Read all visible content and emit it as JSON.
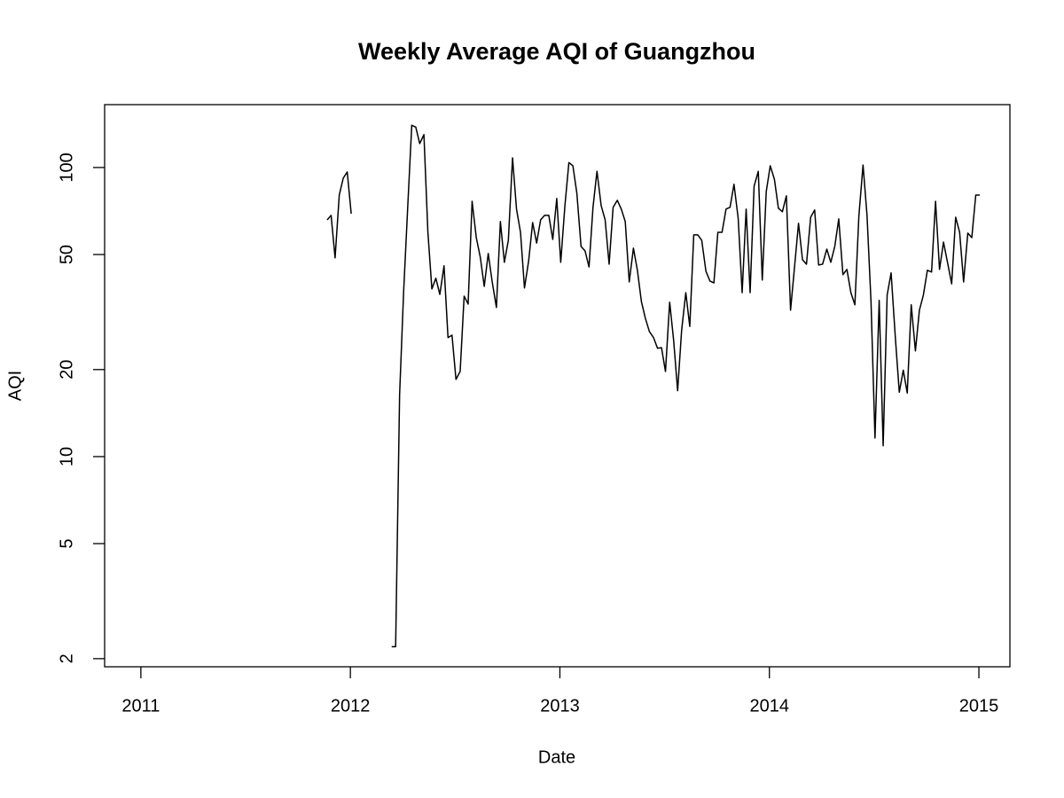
{
  "chart_data": {
    "type": "line",
    "title": "Weekly Average AQI of Guangzhou",
    "x_label": "Date",
    "y_label": "AQI",
    "log_scale_y": true,
    "grid": false,
    "xlim": [
      2010.827,
      2015.148
    ],
    "ylim": [
      1.875,
      165
    ],
    "xticks": [
      2011,
      2012,
      2013,
      2014,
      2015
    ],
    "yticks": [
      2,
      5,
      10,
      20,
      50,
      100
    ],
    "x": [
      2011.889,
      2011.908,
      2011.927,
      2011.947,
      2011.966,
      2011.985,
      2012.004,
      2012.024,
      2012.043,
      2012.062,
      2012.081,
      2012.101,
      2012.12,
      2012.139,
      2012.158,
      2012.177,
      2012.197,
      2012.216,
      2012.235,
      2012.254,
      2012.274,
      2012.293,
      2012.312,
      2012.331,
      2012.351,
      2012.37,
      2012.389,
      2012.408,
      2012.427,
      2012.447,
      2012.466,
      2012.485,
      2012.504,
      2012.524,
      2012.543,
      2012.562,
      2012.581,
      2012.601,
      2012.62,
      2012.639,
      2012.658,
      2012.677,
      2012.697,
      2012.716,
      2012.735,
      2012.754,
      2012.774,
      2012.793,
      2012.812,
      2012.831,
      2012.851,
      2012.87,
      2012.889,
      2012.908,
      2012.927,
      2012.947,
      2012.966,
      2012.985,
      2013.004,
      2013.024,
      2013.043,
      2013.062,
      2013.081,
      2013.101,
      2013.12,
      2013.139,
      2013.158,
      2013.177,
      2013.197,
      2013.216,
      2013.235,
      2013.254,
      2013.274,
      2013.293,
      2013.312,
      2013.331,
      2013.351,
      2013.37,
      2013.389,
      2013.408,
      2013.427,
      2013.447,
      2013.466,
      2013.485,
      2013.504,
      2013.524,
      2013.543,
      2013.562,
      2013.581,
      2013.601,
      2013.62,
      2013.639,
      2013.658,
      2013.677,
      2013.697,
      2013.716,
      2013.735,
      2013.754,
      2013.774,
      2013.793,
      2013.812,
      2013.831,
      2013.851,
      2013.87,
      2013.889,
      2013.908,
      2013.927,
      2013.947,
      2013.966,
      2013.985,
      2014.004,
      2014.024,
      2014.043,
      2014.062,
      2014.081,
      2014.101,
      2014.12,
      2014.139,
      2014.158,
      2014.177,
      2014.197,
      2014.216,
      2014.235,
      2014.254,
      2014.274,
      2014.293,
      2014.312,
      2014.331,
      2014.351,
      2014.37,
      2014.389,
      2014.408,
      2014.427,
      2014.447,
      2014.466,
      2014.485,
      2014.504,
      2014.524,
      2014.543,
      2014.562,
      2014.581,
      2014.601,
      2014.62,
      2014.639,
      2014.658,
      2014.677,
      2014.697,
      2014.716,
      2014.735,
      2014.754,
      2014.774,
      2014.793,
      2014.812,
      2014.831,
      2014.851,
      2014.87,
      2014.889,
      2014.908,
      2014.927,
      2014.947,
      2014.966,
      2014.985,
      2015.004
    ],
    "series": [
      {
        "color": "#000000",
        "values": [
          65.9,
          68.3,
          48.7,
          80.3,
          91.9,
          96.5,
          69.2,
          null,
          null,
          null,
          null,
          null,
          null,
          null,
          null,
          null,
          2.2,
          2.2,
          16.4,
          36.9,
          73.8,
          140,
          138,
          121,
          130,
          59.7,
          38,
          41.4,
          36.4,
          45.7,
          25.8,
          26.3,
          18.5,
          19.7,
          35.9,
          33.7,
          76.4,
          57.2,
          49,
          38.8,
          50.4,
          40.2,
          32.8,
          65,
          47,
          56,
          108,
          71.8,
          59.7,
          38.3,
          47.6,
          64.5,
          54.8,
          65.9,
          68.3,
          68.3,
          56.4,
          78.1,
          47,
          73.8,
          104,
          101.4,
          81.5,
          53.3,
          51.5,
          45.3,
          72.8,
          97,
          73.8,
          65.9,
          46.3,
          72.8,
          77,
          71.8,
          65,
          40.2,
          52.6,
          44.1,
          34.4,
          30.1,
          27.1,
          25.8,
          23.7,
          23.8,
          19.7,
          34.2,
          25.2,
          16.9,
          27.3,
          36.9,
          28.2,
          58.5,
          58.5,
          56,
          43.8,
          40.5,
          39.9,
          59.7,
          59.7,
          71.8,
          72.8,
          87.5,
          66.8,
          36.9,
          71.8,
          36.9,
          86.2,
          97,
          40.8,
          82.6,
          101.4,
          91,
          72.3,
          70.3,
          79.8,
          32.1,
          45.3,
          64.1,
          48,
          46.3,
          67.3,
          71.3,
          46,
          46.3,
          52.2,
          47,
          53.3,
          66.4,
          42.6,
          44.4,
          36.9,
          33.5,
          67.8,
          102,
          68.3,
          34.4,
          11.6,
          34.7,
          10.9,
          36.2,
          43.2,
          25.9,
          16.7,
          19.9,
          16.6,
          33.5,
          23.2,
          32.1,
          36.2,
          44.1,
          43.5,
          76.4,
          44.4,
          55.2,
          46.6,
          39.6,
          67.3,
          59.7,
          40.2,
          59.3,
          57.2,
          80.3,
          80.3
        ]
      }
    ]
  }
}
